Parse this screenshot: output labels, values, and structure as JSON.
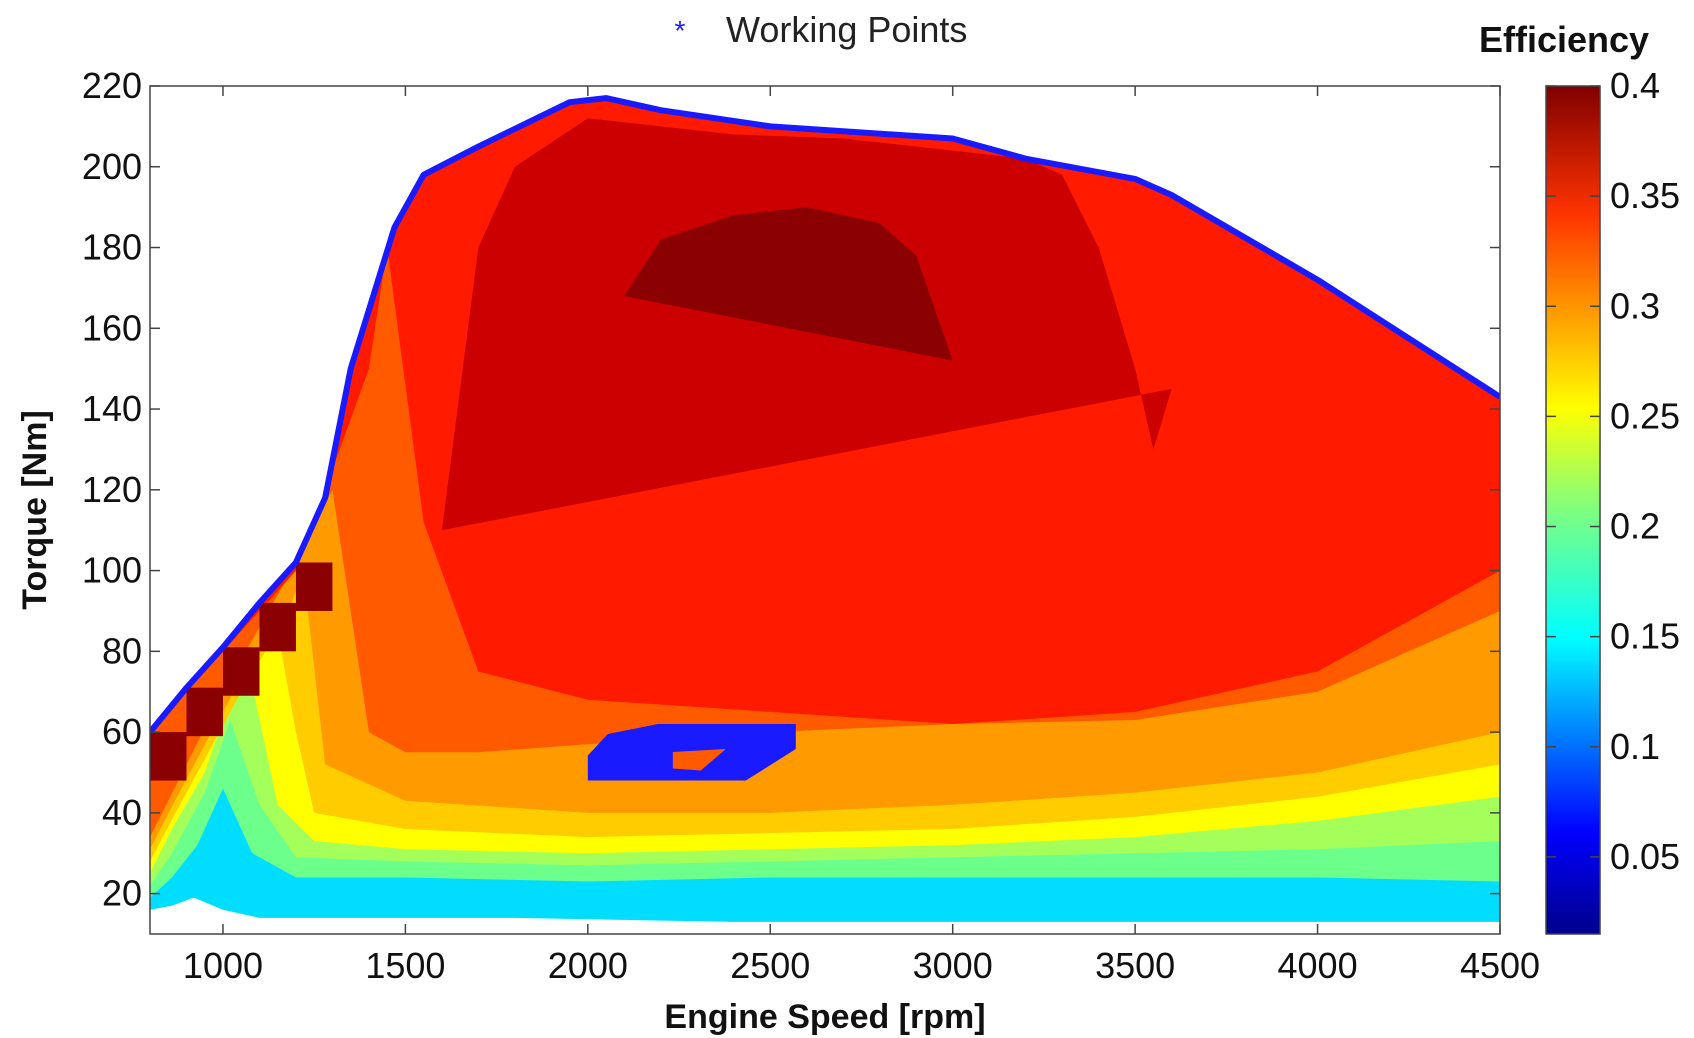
{
  "chart_data": {
    "type": "heatmap",
    "xlabel": "Engine Speed [rpm]",
    "ylabel": "Torque [Nm]",
    "xlim": [
      800,
      4500
    ],
    "ylim": [
      10,
      220
    ],
    "x_ticks": [
      1000,
      1500,
      2000,
      2500,
      3000,
      3500,
      4000,
      4500
    ],
    "y_ticks": [
      20,
      40,
      60,
      80,
      100,
      120,
      140,
      160,
      180,
      200,
      220
    ],
    "colorbar": {
      "title": "Efficiency",
      "range": [
        0.015,
        0.4
      ],
      "ticks": [
        "0.05",
        "0.1",
        "0.15",
        "0.2",
        "0.25",
        "0.3",
        "0.35",
        "0.4"
      ],
      "colormap": "jet"
    },
    "legend": {
      "label": "Working Points",
      "marker": "*",
      "color": "#1a1aff",
      "position": "top"
    },
    "max_torque_curve": {
      "color": "#1a1aff",
      "x": [
        800,
        900,
        1000,
        1100,
        1200,
        1280,
        1350,
        1470,
        1550,
        1700,
        1950,
        2050,
        2200,
        2500,
        3000,
        3200,
        3500,
        3600,
        4000,
        4500
      ],
      "y": [
        60,
        71,
        81,
        92,
        102,
        118,
        150,
        185,
        198,
        205,
        216,
        217,
        214,
        210,
        207,
        202,
        197,
        193,
        172,
        143
      ]
    },
    "efficiency_zones": [
      {
        "level": 0.12,
        "color": "#00ddff",
        "x": [
          800,
          860,
          920,
          1000,
          1100,
          1300,
          1800,
          2400,
          3000,
          3500,
          4000,
          4500
        ],
        "y": [
          16,
          17,
          19,
          16,
          14,
          14,
          14,
          13,
          13,
          13,
          13,
          13
        ]
      },
      {
        "level": 0.2,
        "color": "#6cff8c",
        "x": [
          800,
          860,
          930,
          1000,
          1080,
          1200,
          1500,
          2000,
          2500,
          3000,
          3500,
          4000,
          4500
        ],
        "y": [
          19,
          24,
          32,
          46,
          30,
          24,
          24,
          23,
          24,
          24,
          24,
          24,
          23
        ]
      },
      {
        "level": 0.24,
        "color": "#a5ff5a",
        "x": [
          800,
          860,
          950,
          1020,
          1100,
          1200,
          1500,
          2000,
          2500,
          3000,
          3500,
          4000,
          4500
        ],
        "y": [
          22,
          30,
          45,
          63,
          42,
          29,
          28,
          27,
          28,
          29,
          30,
          31,
          33
        ]
      },
      {
        "level": 0.27,
        "color": "#ffff00",
        "x": [
          800,
          860,
          950,
          1010,
          1060,
          1150,
          1250,
          1500,
          2000,
          2500,
          3000,
          3500,
          4000,
          4500
        ],
        "y": [
          25,
          36,
          50,
          66,
          80,
          42,
          33,
          31,
          30,
          31,
          32,
          34,
          38,
          44
        ]
      },
      {
        "level": 0.29,
        "color": "#ffcc00",
        "x": [
          800,
          870,
          960,
          1050,
          1150,
          1200,
          1250,
          1500,
          2000,
          2500,
          3000,
          3500,
          4000,
          4500
        ],
        "y": [
          28,
          40,
          55,
          70,
          85,
          60,
          40,
          36,
          34,
          35,
          36,
          39,
          44,
          52
        ]
      },
      {
        "level": 0.315,
        "color": "#ff9a00",
        "x": [
          800,
          880,
          980,
          1080,
          1180,
          1220,
          1280,
          1500,
          2000,
          2500,
          3000,
          3500,
          4000,
          4500
        ],
        "y": [
          31,
          45,
          62,
          78,
          90,
          100,
          52,
          43,
          40,
          40,
          42,
          45,
          50,
          60
        ]
      },
      {
        "level": 0.335,
        "color": "#ff5a00",
        "x": [
          800,
          900,
          1000,
          1100,
          1200,
          1300,
          1400,
          1500,
          1700,
          2000,
          2500,
          3000,
          3500,
          4000,
          4500
        ],
        "y": [
          34,
          52,
          70,
          86,
          102,
          120,
          60,
          55,
          55,
          57,
          60,
          62,
          63,
          70,
          90
        ]
      },
      {
        "level": 0.35,
        "color": "#ff1a00",
        "x": [
          800,
          1000,
          1200,
          1400,
          1450,
          1550,
          1700,
          2000,
          2500,
          3000,
          3500,
          4000,
          4500
        ],
        "y": [
          60,
          80,
          100,
          150,
          180,
          112,
          75,
          68,
          65,
          62,
          65,
          75,
          100
        ]
      },
      {
        "level": 0.375,
        "color": "#cc0000",
        "x": [
          1600,
          1700,
          1800,
          2000,
          2400,
          2700,
          3000,
          3200,
          3300,
          3400,
          3500,
          3550,
          3600
        ],
        "y": [
          110,
          180,
          200,
          212,
          208,
          207,
          204,
          202,
          198,
          180,
          150,
          130,
          145
        ]
      },
      {
        "level": 0.395,
        "color": "#8b0000",
        "x": [
          2100,
          2200,
          2400,
          2600,
          2800,
          2900,
          3000
        ],
        "y": [
          168,
          182,
          188,
          190,
          186,
          178,
          152
        ]
      }
    ],
    "working_points_region": {
      "color": "#1a1aff",
      "x_range": [
        2000,
        2570
      ],
      "y_range": [
        48,
        62
      ]
    },
    "boundary_steps": {
      "color": "#8b0000",
      "x": [
        800,
        900,
        1000,
        1100,
        1200
      ],
      "y": [
        60,
        71,
        81,
        92,
        102
      ]
    }
  }
}
